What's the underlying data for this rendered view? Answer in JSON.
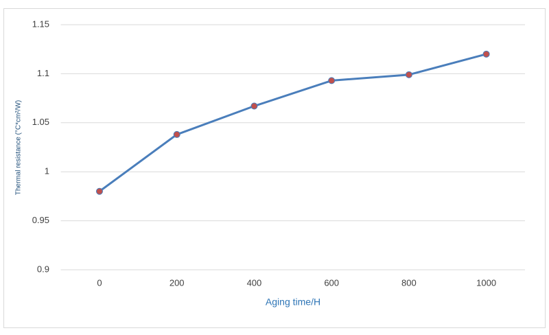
{
  "chart_data": {
    "type": "line",
    "x_label": "Aging time/H",
    "y_label": "Thermal resistance (°C*cm²/W)",
    "categories": [
      "0",
      "200",
      "400",
      "600",
      "800",
      "1000"
    ],
    "series": [
      {
        "name": "Thermal resistance",
        "color": "#4a7ebb",
        "marker_color": "#c0504d",
        "values": [
          0.98,
          1.038,
          1.067,
          1.093,
          1.099,
          1.12
        ]
      }
    ],
    "ylim": [
      0.9,
      1.15
    ],
    "yticks": [
      0.9,
      0.95,
      1,
      1.05,
      1.1,
      1.15
    ],
    "grid": true,
    "legend": false
  }
}
